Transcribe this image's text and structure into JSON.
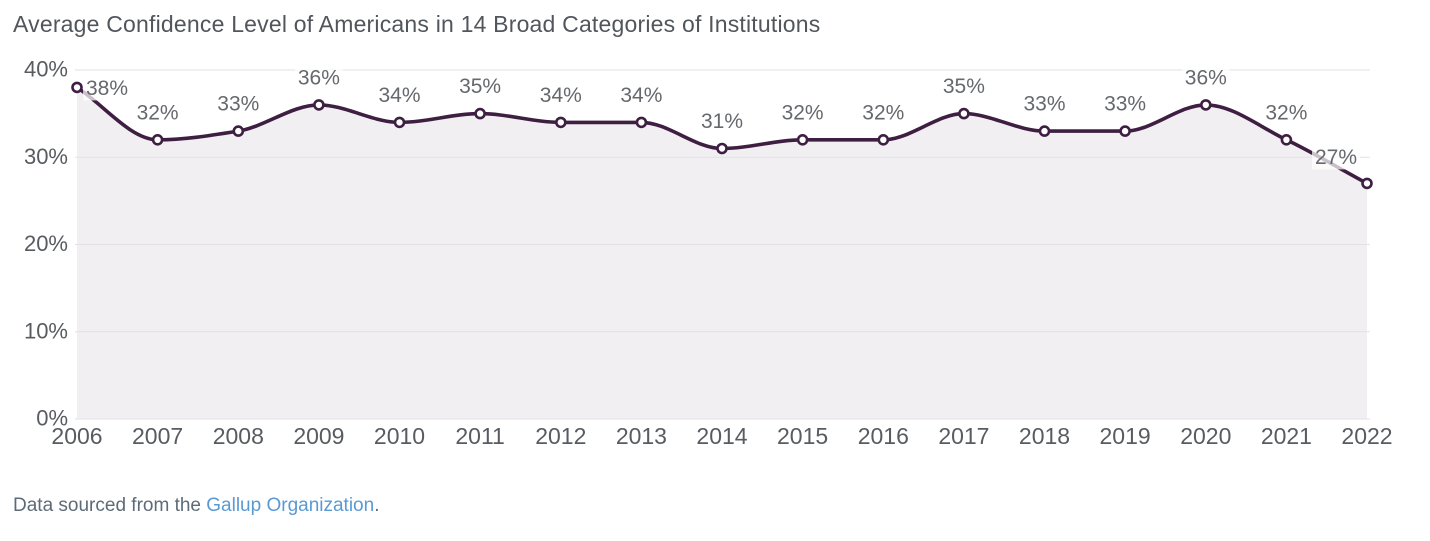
{
  "header": {
    "title": "Average Confidence Level of Americans in 14 Broad Categories of Institutions"
  },
  "footer": {
    "prefix": "Data sourced from the ",
    "link": "Gallup Organization",
    "suffix": "."
  },
  "chart_data": {
    "type": "line",
    "title": "Average Confidence Level of Americans in 14 Broad Categories of Institutions",
    "x": [
      2006,
      2007,
      2008,
      2009,
      2010,
      2011,
      2012,
      2013,
      2014,
      2015,
      2016,
      2017,
      2018,
      2019,
      2020,
      2021,
      2022
    ],
    "values": [
      38,
      32,
      33,
      36,
      34,
      35,
      34,
      34,
      31,
      32,
      32,
      35,
      33,
      33,
      36,
      32,
      27
    ],
    "unit": "%",
    "xlabel": "",
    "ylabel": "",
    "ylim": [
      0,
      40
    ],
    "yticks": [
      0,
      10,
      20,
      30,
      40
    ],
    "ytick_format": "{v}%",
    "grid": "horizontal",
    "legend": "none",
    "markers": "open-circle",
    "data_labels": true,
    "colors": {
      "line": "#3e1f42",
      "area": "#f1eff2",
      "grid": "#e2e1e6",
      "marker_fill": "#ffffff",
      "axis_text": "#585c61",
      "data_label_text": "#65686c",
      "title_text": "#51565c",
      "footer_text": "#5d6b78",
      "link": "#5a9ad2",
      "label_halo": "rgba(255,255,255,0.72)"
    }
  }
}
